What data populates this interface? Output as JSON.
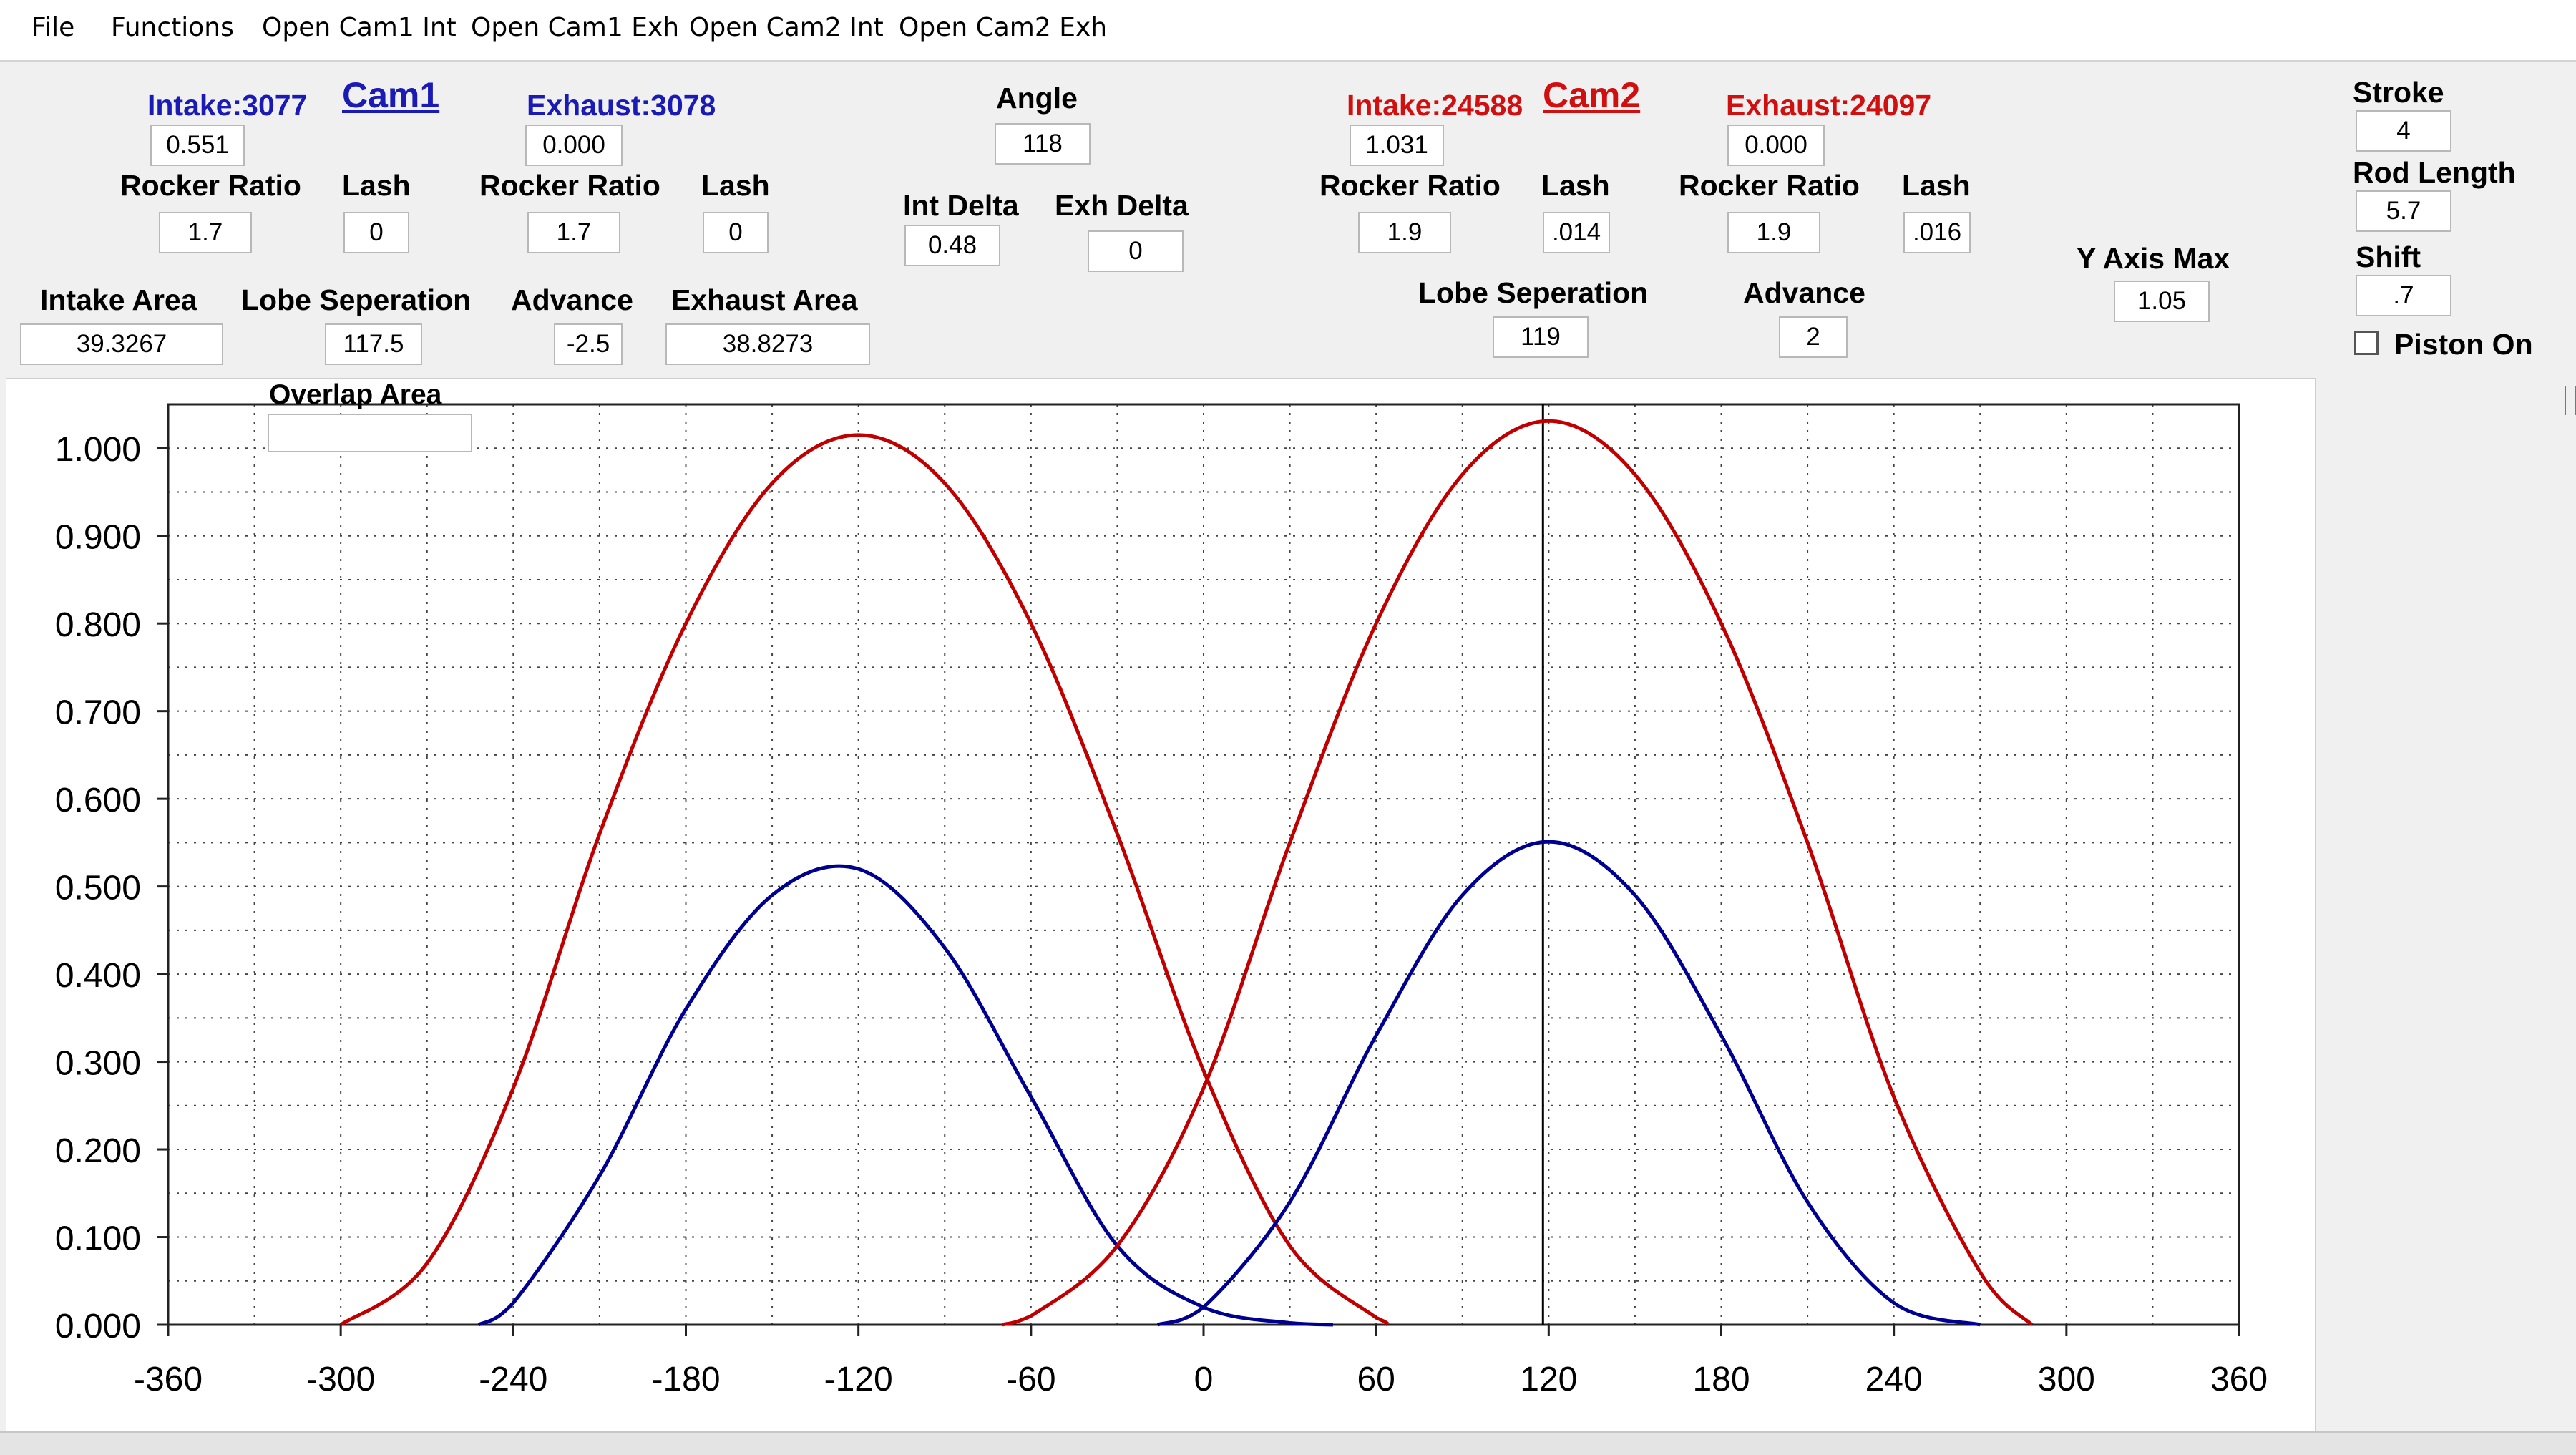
{
  "menu": {
    "items": [
      "File",
      "Functions",
      "Open Cam1 Int",
      "Open Cam1 Exh",
      "Open Cam2 Int",
      "Open Cam2 Exh"
    ]
  },
  "cam1": {
    "title": "Cam1",
    "intake_label": "Intake:3077",
    "intake_value": "0.551",
    "exhaust_label": "Exhaust:3078",
    "exhaust_value": "0.000",
    "rocker_ratio_label": "Rocker Ratio",
    "lash_label": "Lash",
    "int_rocker_ratio": "1.7",
    "int_lash": "0",
    "exh_rocker_ratio": "1.7",
    "exh_lash": "0",
    "intake_area_label": "Intake Area",
    "intake_area": "39.3267",
    "lobe_sep_label": "Lobe Seperation",
    "lobe_sep": "117.5",
    "advance_label": "Advance",
    "advance": "-2.5",
    "exhaust_area_label": "Exhaust Area",
    "exhaust_area": "38.8273"
  },
  "center": {
    "angle_label": "Angle",
    "angle": "118",
    "int_delta_label": "Int Delta",
    "int_delta": "0.48",
    "exh_delta_label": "Exh Delta",
    "exh_delta": "0",
    "overlap_label": "Overlap Area",
    "overlap_value": ""
  },
  "cam2": {
    "title": "Cam2",
    "intake_label": "Intake:24588",
    "intake_value": "1.031",
    "exhaust_label": "Exhaust:24097",
    "exhaust_value": "0.000",
    "rocker_ratio_label": "Rocker Ratio",
    "lash_label": "Lash",
    "int_rocker_ratio": "1.9",
    "int_lash": ".014",
    "exh_rocker_ratio": "1.9",
    "exh_lash": ".016",
    "lobe_sep_label": "Lobe Seperation",
    "lobe_sep": "119",
    "advance_label": "Advance",
    "advance": "2"
  },
  "right": {
    "y_axis_max_label": "Y Axis Max",
    "y_axis_max": "1.05",
    "stroke_label": "Stroke",
    "stroke": "4",
    "rod_length_label": "Rod Length",
    "rod_length": "5.7",
    "shift_label": "Shift",
    "shift": ".7",
    "piston_on_label": "Piston On",
    "piston_on": false
  },
  "colors": {
    "cam1": "#1a1ab4",
    "cam2": "#d01010",
    "curve_red": "#c00000",
    "curve_blue": "#000090"
  },
  "chart_data": {
    "type": "line",
    "xlim": [
      -360,
      360
    ],
    "ylim": [
      0,
      1.05
    ],
    "x_ticks": [
      "-360",
      "-300",
      "-240",
      "-180",
      "-120",
      "-60",
      "0",
      "60",
      "120",
      "180",
      "240",
      "300",
      "360"
    ],
    "y_ticks": [
      "0.000",
      "0.100",
      "0.200",
      "0.300",
      "0.400",
      "0.500",
      "0.600",
      "0.700",
      "0.800",
      "0.900",
      "1.000"
    ],
    "grid": true,
    "cursor_x": 118,
    "series": [
      {
        "color": "red",
        "x": [
          -300,
          -270,
          -240,
          -210,
          -180,
          -150,
          -120,
          -90,
          -60,
          -30,
          0,
          30,
          60,
          64
        ],
        "y": [
          0.0,
          0.07,
          0.27,
          0.56,
          0.8,
          0.96,
          1.015,
          0.96,
          0.8,
          0.56,
          0.29,
          0.09,
          0.008,
          0.0
        ]
      },
      {
        "color": "blue",
        "x": [
          -252,
          -240,
          -210,
          -180,
          -150,
          -120,
          -90,
          -60,
          -30,
          0,
          30,
          45
        ],
        "y": [
          0.0,
          0.025,
          0.17,
          0.36,
          0.49,
          0.52,
          0.43,
          0.26,
          0.09,
          0.02,
          0.002,
          0.0
        ]
      },
      {
        "color": "red",
        "x": [
          -70,
          -60,
          -30,
          0,
          30,
          60,
          90,
          120,
          150,
          180,
          210,
          240,
          270,
          288
        ],
        "y": [
          0.0,
          0.01,
          0.09,
          0.27,
          0.55,
          0.8,
          0.97,
          1.031,
          0.97,
          0.8,
          0.55,
          0.26,
          0.06,
          0.0
        ]
      },
      {
        "color": "blue",
        "x": [
          -16,
          0,
          30,
          60,
          90,
          120,
          150,
          180,
          210,
          240,
          270
        ],
        "y": [
          0.0,
          0.02,
          0.14,
          0.33,
          0.49,
          0.551,
          0.49,
          0.33,
          0.14,
          0.025,
          0.0
        ]
      }
    ]
  }
}
